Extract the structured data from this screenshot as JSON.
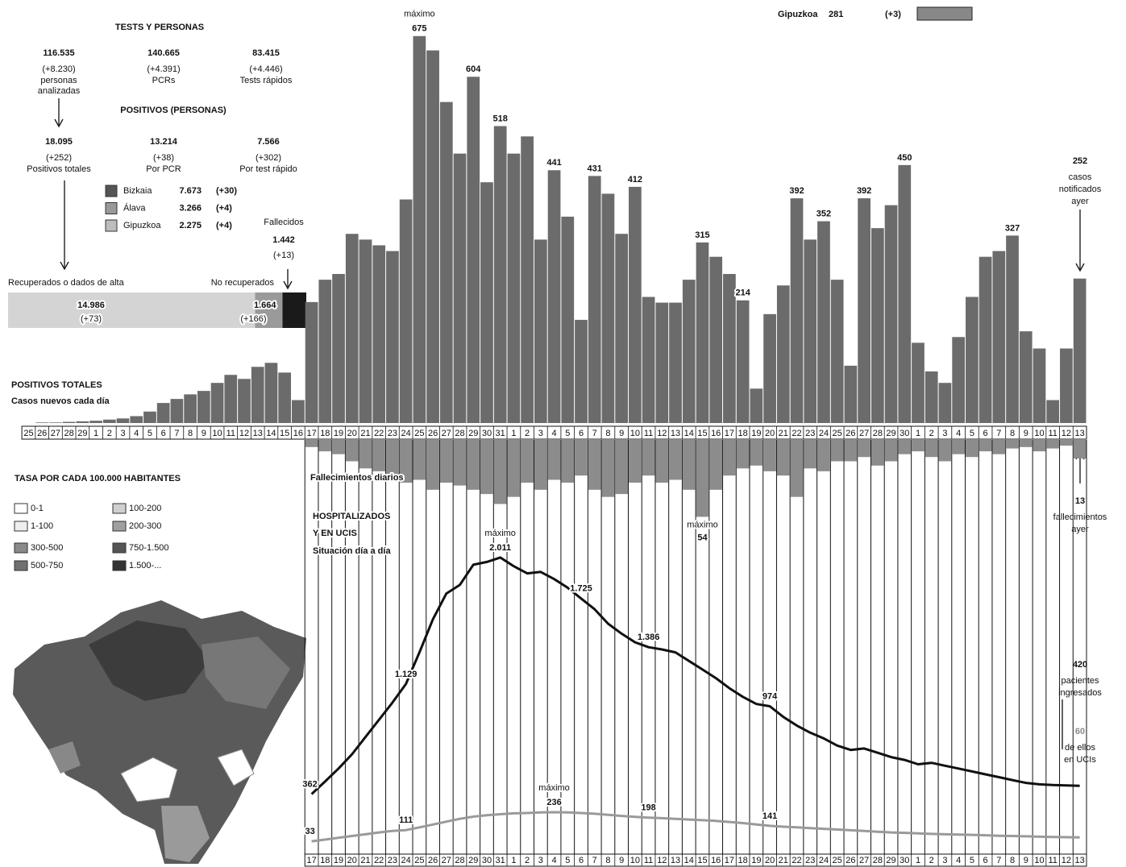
{
  "chart_data": [
    {
      "type": "bar",
      "title": "POSITIVOS TOTALES",
      "subtitle": "Casos nuevos cada día",
      "annotation": "máximo",
      "color": "#6b6b6b",
      "ylim": [
        0,
        700
      ],
      "categories": [
        "25",
        "26",
        "27",
        "28",
        "29",
        "1",
        "2",
        "3",
        "4",
        "5",
        "6",
        "7",
        "8",
        "9",
        "10",
        "11",
        "12",
        "13",
        "14",
        "15",
        "16",
        "17",
        "18",
        "19",
        "20",
        "21",
        "22",
        "23",
        "24",
        "25",
        "26",
        "27",
        "28",
        "29",
        "30",
        "31",
        "1",
        "2",
        "3",
        "4",
        "5",
        "6",
        "7",
        "8",
        "9",
        "10",
        "11",
        "12",
        "13",
        "14",
        "15",
        "16",
        "17",
        "18",
        "19",
        "20",
        "21",
        "22",
        "23",
        "24",
        "25",
        "26",
        "27",
        "28",
        "29",
        "30",
        "1",
        "2",
        "3",
        "4",
        "5",
        "6",
        "7",
        "8",
        "9",
        "10",
        "11",
        "12",
        "13"
      ],
      "values": [
        0,
        1,
        1,
        2,
        3,
        4,
        6,
        8,
        12,
        20,
        35,
        42,
        50,
        56,
        70,
        84,
        77,
        98,
        105,
        88,
        40,
        211,
        250,
        260,
        330,
        320,
        310,
        300,
        390,
        675,
        650,
        560,
        470,
        604,
        420,
        518,
        470,
        500,
        320,
        441,
        360,
        180,
        431,
        400,
        330,
        412,
        220,
        210,
        210,
        250,
        315,
        290,
        260,
        214,
        60,
        190,
        240,
        392,
        320,
        352,
        250,
        100,
        392,
        340,
        380,
        450,
        140,
        90,
        70,
        150,
        220,
        290,
        300,
        327,
        160,
        130,
        40,
        130,
        252
      ],
      "value_labels": [
        null,
        null,
        null,
        null,
        null,
        null,
        null,
        null,
        null,
        null,
        null,
        null,
        null,
        null,
        null,
        null,
        null,
        null,
        null,
        null,
        null,
        null,
        null,
        null,
        null,
        null,
        null,
        null,
        null,
        "675",
        null,
        null,
        null,
        "604",
        null,
        "518",
        null,
        null,
        null,
        "441",
        null,
        null,
        "431",
        null,
        null,
        "412",
        null,
        null,
        null,
        null,
        "315",
        null,
        null,
        "214",
        null,
        null,
        null,
        "392",
        null,
        "352",
        null,
        null,
        "392",
        null,
        null,
        "450",
        null,
        null,
        null,
        null,
        null,
        null,
        null,
        "327",
        null,
        null,
        null,
        null,
        null
      ]
    },
    {
      "type": "bar",
      "direction": "down",
      "title": "Fallecimientos diarios",
      "annotation": "máximo",
      "color": "#8c8c8c",
      "ylim": [
        0,
        60
      ],
      "values": [
        5,
        8,
        10,
        15,
        20,
        22,
        25,
        30,
        28,
        35,
        30,
        32,
        35,
        38,
        45,
        40,
        30,
        35,
        28,
        30,
        25,
        35,
        40,
        38,
        30,
        25,
        30,
        28,
        35,
        54,
        35,
        25,
        20,
        18,
        22,
        25,
        40,
        20,
        22,
        15,
        15,
        12,
        18,
        15,
        10,
        8,
        12,
        15,
        10,
        12,
        8,
        10,
        6,
        5,
        8,
        6,
        4,
        13
      ],
      "value_labels": [
        null,
        null,
        null,
        null,
        null,
        null,
        null,
        null,
        null,
        null,
        null,
        null,
        null,
        null,
        null,
        null,
        null,
        null,
        null,
        null,
        null,
        null,
        null,
        null,
        null,
        null,
        null,
        null,
        null,
        "54",
        null,
        null,
        null,
        null,
        null,
        null,
        null,
        null,
        null,
        null,
        null,
        null,
        null,
        null,
        null,
        null,
        null,
        null,
        null,
        null,
        null,
        null,
        null,
        null,
        null,
        null,
        null,
        null
      ]
    },
    {
      "type": "line",
      "title": [
        "HOSPITALIZADOS",
        "Y EN UCIS"
      ],
      "subtitle": "Situación día a día",
      "ylim": [
        0,
        2100
      ],
      "categories": [
        "17",
        "18",
        "19",
        "20",
        "21",
        "22",
        "23",
        "24",
        "25",
        "26",
        "27",
        "28",
        "29",
        "30",
        "31",
        "1",
        "2",
        "3",
        "4",
        "5",
        "6",
        "7",
        "8",
        "9",
        "10",
        "11",
        "12",
        "13",
        "14",
        "15",
        "16",
        "17",
        "18",
        "19",
        "20",
        "21",
        "22",
        "23",
        "24",
        "25",
        "26",
        "27",
        "28",
        "29",
        "30",
        "1",
        "2",
        "3",
        "4",
        "5",
        "6",
        "7",
        "8",
        "9",
        "10",
        "11",
        "12",
        "13"
      ],
      "series": [
        {
          "color": "#111111",
          "max_label": "máximo",
          "values": [
            362,
            450,
            540,
            640,
            760,
            880,
            1000,
            1129,
            1350,
            1580,
            1760,
            1820,
            1960,
            1980,
            2011,
            1950,
            1900,
            1910,
            1860,
            1800,
            1725,
            1650,
            1550,
            1480,
            1420,
            1386,
            1370,
            1350,
            1290,
            1230,
            1170,
            1100,
            1040,
            990,
            974,
            900,
            840,
            790,
            750,
            700,
            670,
            680,
            650,
            620,
            600,
            570,
            580,
            560,
            540,
            520,
            500,
            480,
            460,
            440,
            430,
            425,
            422,
            420
          ],
          "value_labels": [
            "362",
            null,
            null,
            null,
            null,
            null,
            null,
            "1.129",
            null,
            null,
            null,
            null,
            null,
            null,
            "2.011",
            null,
            null,
            null,
            null,
            null,
            "1.725",
            null,
            null,
            null,
            null,
            "1.386",
            null,
            null,
            null,
            null,
            null,
            null,
            null,
            null,
            "974",
            null,
            null,
            null,
            null,
            null,
            null,
            null,
            null,
            null,
            null,
            null,
            null,
            null,
            null,
            null,
            null,
            null,
            null,
            null,
            null,
            null,
            null,
            null
          ]
        },
        {
          "color": "#9a9a9a",
          "max_label": "máximo",
          "values": [
            33,
            45,
            58,
            70,
            82,
            95,
            105,
            111,
            130,
            150,
            170,
            190,
            205,
            215,
            222,
            228,
            230,
            234,
            236,
            234,
            230,
            225,
            218,
            210,
            204,
            198,
            194,
            190,
            185,
            180,
            175,
            168,
            160,
            150,
            141,
            135,
            130,
            125,
            120,
            115,
            110,
            105,
            100,
            95,
            92,
            88,
            85,
            82,
            80,
            78,
            75,
            72,
            70,
            68,
            65,
            63,
            62,
            60
          ],
          "value_labels": [
            "33",
            null,
            null,
            null,
            null,
            null,
            null,
            "111",
            null,
            null,
            null,
            null,
            null,
            null,
            null,
            null,
            null,
            null,
            "236",
            null,
            null,
            null,
            null,
            null,
            null,
            "198",
            null,
            null,
            null,
            null,
            null,
            null,
            null,
            null,
            "141",
            null,
            null,
            null,
            null,
            null,
            null,
            null,
            null,
            null,
            null,
            null,
            null,
            null,
            null,
            null,
            null,
            null,
            null,
            null,
            null,
            null,
            null,
            null
          ]
        }
      ]
    }
  ],
  "stats": {
    "top_legend": {
      "name": "Gipuzkoa",
      "value": "281",
      "change": "(+3)"
    },
    "tests": {
      "title": "TESTS Y PERSONAS",
      "items": [
        {
          "value": "116.535",
          "change": "(+8.230)",
          "label": [
            "personas",
            "analizadas"
          ]
        },
        {
          "value": "140.665",
          "change": "(+4.391)",
          "label": [
            "PCRs"
          ]
        },
        {
          "value": "83.415",
          "change": "(+4.446)",
          "label": [
            "Tests rápidos"
          ]
        }
      ]
    },
    "positivos": {
      "title": "POSITIVOS (PERSONAS)",
      "items": [
        {
          "value": "18.095",
          "change": "(+252)",
          "label": [
            "Positivos totales"
          ]
        },
        {
          "value": "13.214",
          "change": "(+38)",
          "label": [
            "Por PCR"
          ]
        },
        {
          "value": "7.566",
          "change": "(+302)",
          "label": [
            "Por test rápido"
          ]
        }
      ]
    },
    "provinces": [
      {
        "name": "Bizkaia",
        "value": "7.673",
        "change": "(+30)",
        "color": "#555555"
      },
      {
        "name": "Álava",
        "value": "3.266",
        "change": "(+4)",
        "color": "#999999"
      },
      {
        "name": "Gipuzkoa",
        "value": "2.275",
        "change": "(+4)",
        "color": "#bdbdbd"
      }
    ],
    "outcome": [
      {
        "label": "Recuperados o dados de alta",
        "value": 14986,
        "value_label": "14.986",
        "change": "(+73)",
        "color": "#d4d4d4"
      },
      {
        "label": "No recuperados",
        "value": 1664,
        "value_label": "1.664",
        "change": "(+166)",
        "color": "#9a9a9a"
      },
      {
        "label": "Fallecidos",
        "value": 1442,
        "value_label": "1.442",
        "change": "(+13)",
        "color": "#1a1a1a"
      }
    ],
    "map_legend": {
      "title": "TASA POR CADA 100.000 HABITANTES",
      "items": [
        {
          "label": "0-1",
          "color": "#ffffff"
        },
        {
          "label": "100-200",
          "color": "#d0d0d0"
        },
        {
          "label": "1-100",
          "color": "#eeeeee"
        },
        {
          "label": "200-300",
          "color": "#a0a0a0"
        },
        {
          "label": "300-500",
          "color": "#8a8a8a"
        },
        {
          "label": "750-1.500",
          "color": "#555555"
        },
        {
          "label": "500-750",
          "color": "#707070"
        },
        {
          "label": "1.500-...",
          "color": "#333333"
        }
      ]
    },
    "callouts": [
      {
        "value": "252",
        "text": [
          "casos",
          "notificados",
          "ayer"
        ]
      },
      {
        "value": "13",
        "text": [
          "fallecimientos",
          "ayer"
        ]
      },
      {
        "value": "420",
        "text": [
          "pacientes",
          "ingresados"
        ]
      },
      {
        "value": "60",
        "text": [
          "de ellos",
          "en UCIs"
        ]
      }
    ]
  }
}
